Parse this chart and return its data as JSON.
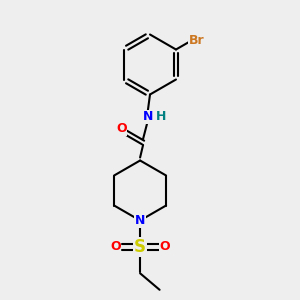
{
  "background_color": "#eeeeee",
  "bond_color": "#000000",
  "bond_width": 1.5,
  "atoms": {
    "Br": {
      "color": "#cc7722",
      "fontsize": 9
    },
    "O": {
      "color": "#ff0000",
      "fontsize": 9
    },
    "N": {
      "color": "#0000ff",
      "fontsize": 9
    },
    "H": {
      "color": "#008080",
      "fontsize": 9
    },
    "S": {
      "color": "#cccc00",
      "fontsize": 11
    },
    "C": {
      "color": "#000000",
      "fontsize": 9
    }
  },
  "figsize": [
    3.0,
    3.0
  ],
  "dpi": 100,
  "xlim": [
    0,
    10
  ],
  "ylim": [
    0,
    10
  ]
}
